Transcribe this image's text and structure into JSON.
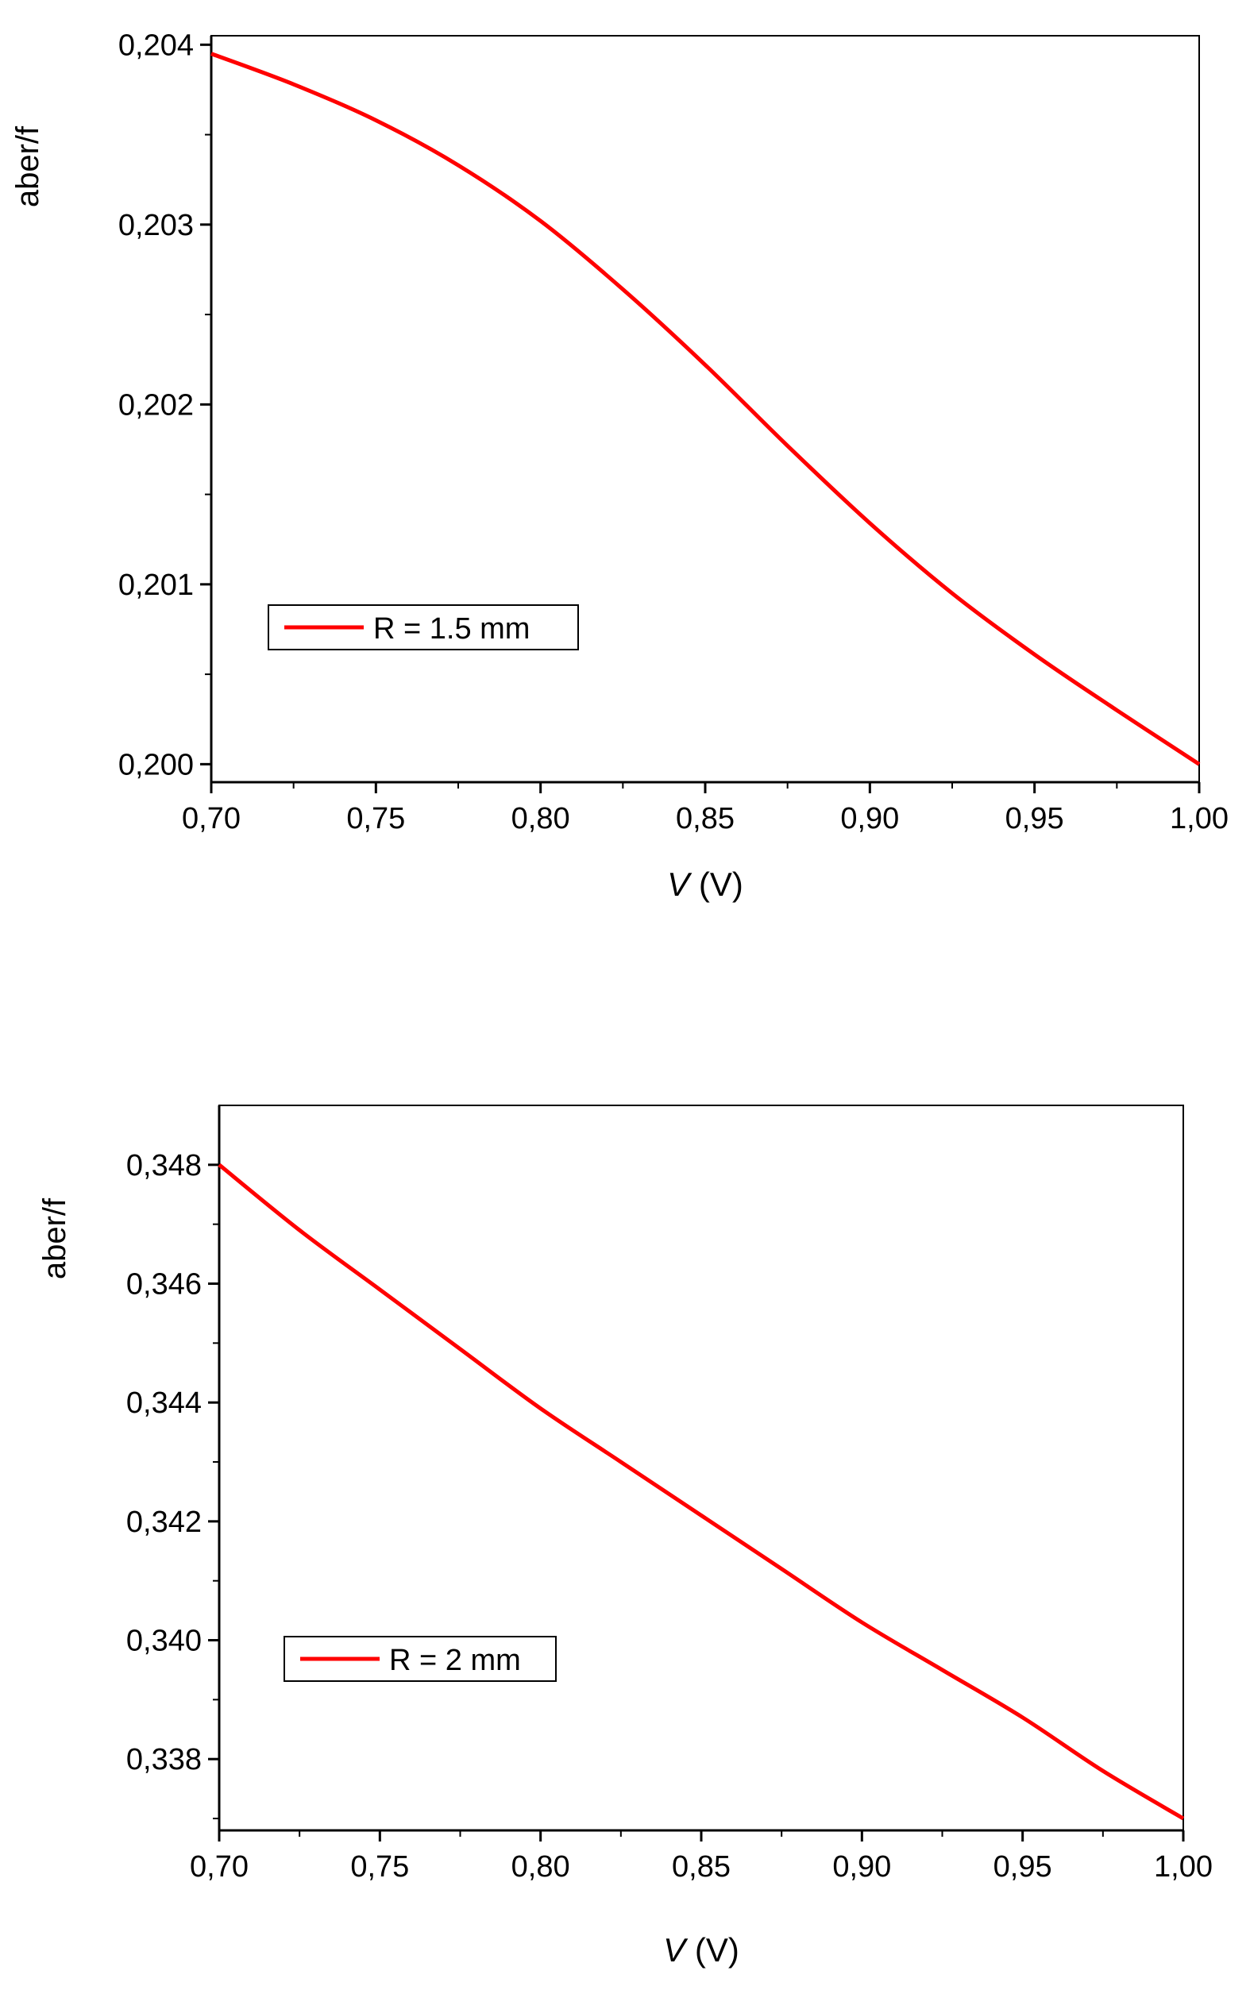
{
  "chart_data": [
    {
      "type": "line",
      "xlabel_italic": "V",
      "xlabel_unit": "(V)",
      "ylabel": "aber/f",
      "xlim": [
        0.7,
        1.0
      ],
      "ylim": [
        0.1999,
        0.20405
      ],
      "xticks": [
        0.7,
        0.75,
        0.8,
        0.85,
        0.9,
        0.95,
        1.0
      ],
      "xtick_labels": [
        "0,70",
        "0,75",
        "0,80",
        "0,85",
        "0,90",
        "0,95",
        "1,00"
      ],
      "yticks": [
        0.2,
        0.201,
        0.202,
        0.203,
        0.204
      ],
      "ytick_labels": [
        "0,200",
        "0,201",
        "0,202",
        "0,203",
        "0,204"
      ],
      "legend_position": "lower-left",
      "series": [
        {
          "name": "R = 1.5 mm",
          "color": "#ff0000",
          "x": [
            0.7,
            0.725,
            0.75,
            0.775,
            0.8,
            0.825,
            0.85,
            0.875,
            0.9,
            0.925,
            0.95,
            0.975,
            1.0
          ],
          "y": [
            0.20395,
            0.20378,
            0.20358,
            0.20333,
            0.20302,
            0.20264,
            0.20222,
            0.20177,
            0.20134,
            0.20095,
            0.20061,
            0.2003,
            0.2
          ]
        }
      ]
    },
    {
      "type": "line",
      "xlabel_italic": "V",
      "xlabel_unit": "(V)",
      "ylabel": "aber/f",
      "xlim": [
        0.7,
        1.0
      ],
      "ylim": [
        0.3368,
        0.349
      ],
      "xticks": [
        0.7,
        0.75,
        0.8,
        0.85,
        0.9,
        0.95,
        1.0
      ],
      "xtick_labels": [
        "0,70",
        "0,75",
        "0,80",
        "0,85",
        "0,90",
        "0,95",
        "1,00"
      ],
      "yticks": [
        0.338,
        0.34,
        0.342,
        0.344,
        0.346,
        0.348
      ],
      "ytick_labels": [
        "0,338",
        "0,340",
        "0,342",
        "0,344",
        "0,346",
        "0,348"
      ],
      "legend_position": "lower-left",
      "series": [
        {
          "name": "R = 2 mm",
          "color": "#ff0000",
          "x": [
            0.7,
            0.725,
            0.75,
            0.775,
            0.8,
            0.825,
            0.85,
            0.875,
            0.9,
            0.925,
            0.95,
            0.975,
            1.0
          ],
          "y": [
            0.348,
            0.3469,
            0.3459,
            0.3449,
            0.3439,
            0.343,
            0.3421,
            0.3412,
            0.3403,
            0.3395,
            0.3387,
            0.3378,
            0.337
          ]
        }
      ]
    }
  ]
}
